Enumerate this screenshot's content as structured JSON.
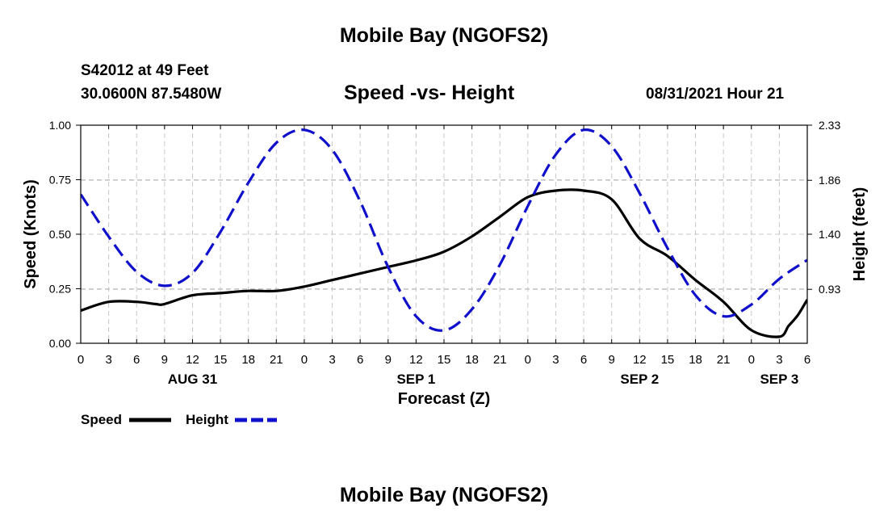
{
  "header": {
    "title": "Mobile Bay (NGOFS2)",
    "station": "S42012 at 49 Feet",
    "coordinates": "30.0600N  87.5480W",
    "chart_title": "Speed -vs- Height",
    "datetime": "08/31/2021 Hour 21"
  },
  "footer": {
    "title": "Mobile Bay (NGOFS2)"
  },
  "colors": {
    "speed": "#000000",
    "height": "#1010cc",
    "grid": "#c8c8c8"
  },
  "chart_data": {
    "type": "line",
    "title": "Speed -vs- Height",
    "xlabel": "Forecast (Z)",
    "ylabel": "Speed (Knots)",
    "y2label": "Height (feet)",
    "xlim": [
      0,
      78
    ],
    "ylim": [
      0,
      1
    ],
    "y2lim": [
      0.47,
      2.33
    ],
    "x_ticks": [
      0,
      3,
      6,
      9,
      12,
      15,
      18,
      21,
      24,
      27,
      30,
      33,
      36,
      39,
      42,
      45,
      48,
      51,
      54,
      57,
      60,
      63,
      66,
      69,
      72,
      75,
      78
    ],
    "x_tick_labels": [
      "0",
      "3",
      "6",
      "9",
      "12",
      "15",
      "18",
      "21",
      "0",
      "3",
      "6",
      "9",
      "12",
      "15",
      "18",
      "21",
      "0",
      "3",
      "6",
      "9",
      "12",
      "15",
      "18",
      "21",
      "0",
      "3",
      "6"
    ],
    "day_labels": [
      {
        "x": 12,
        "label": "AUG 31"
      },
      {
        "x": 36,
        "label": "SEP 1"
      },
      {
        "x": 60,
        "label": "SEP 2"
      },
      {
        "x": 75,
        "label": "SEP 3"
      }
    ],
    "y_ticks": [
      0,
      0.25,
      0.5,
      0.75,
      1.0
    ],
    "y_tick_labels": [
      "0.00",
      "0.25",
      "0.50",
      "0.75",
      "1.00"
    ],
    "y2_ticks": [
      0.93,
      1.4,
      1.86,
      2.33
    ],
    "y2_tick_labels": [
      "0.93",
      "1.40",
      "1.86",
      "2.33"
    ],
    "legend": [
      {
        "label": "Speed",
        "series": "speed"
      },
      {
        "label": "Height",
        "series": "height"
      }
    ],
    "series": [
      {
        "name": "Speed",
        "axis": "left",
        "color": "#000000",
        "dash": "solid",
        "x": [
          0,
          3,
          6,
          8,
          9,
          12,
          15,
          18,
          21,
          24,
          27,
          30,
          33,
          36,
          39,
          42,
          45,
          48,
          51,
          54,
          57,
          60,
          63,
          66,
          69,
          72,
          75,
          76,
          77,
          78
        ],
        "y": [
          0.15,
          0.19,
          0.19,
          0.18,
          0.18,
          0.22,
          0.23,
          0.24,
          0.24,
          0.26,
          0.29,
          0.32,
          0.35,
          0.38,
          0.42,
          0.49,
          0.58,
          0.67,
          0.7,
          0.7,
          0.66,
          0.48,
          0.4,
          0.29,
          0.19,
          0.06,
          0.03,
          0.08,
          0.13,
          0.2
        ]
      },
      {
        "name": "Height",
        "axis": "right",
        "color": "#1010cc",
        "dash": "dashed",
        "x": [
          0,
          3,
          6,
          9,
          12,
          15,
          18,
          21,
          24,
          27,
          30,
          33,
          36,
          39,
          42,
          45,
          48,
          51,
          54,
          57,
          60,
          63,
          66,
          69,
          72,
          75,
          78
        ],
        "y": [
          1.74,
          1.38,
          1.08,
          0.96,
          1.07,
          1.42,
          1.84,
          2.18,
          2.29,
          2.12,
          1.68,
          1.12,
          0.7,
          0.58,
          0.76,
          1.14,
          1.64,
          2.08,
          2.29,
          2.15,
          1.75,
          1.28,
          0.88,
          0.7,
          0.8,
          1.02,
          1.18
        ]
      }
    ]
  }
}
